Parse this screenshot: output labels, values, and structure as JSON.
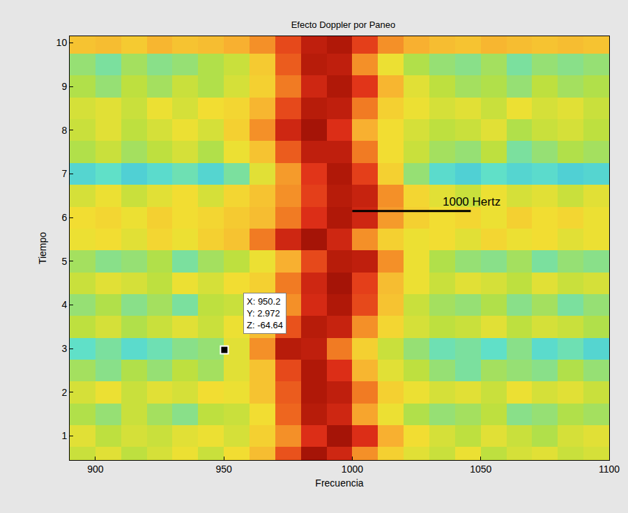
{
  "chart_data": {
    "type": "heatmap",
    "title": "Efecto Doppler por Paneo",
    "x_label": "Frecuencia",
    "y_label": "Tiempo",
    "x": [
      895,
      905,
      915,
      925,
      935,
      945,
      955,
      965,
      975,
      985,
      995,
      1005,
      1015,
      1025,
      1035,
      1045,
      1055,
      1065,
      1075,
      1085,
      1095
    ],
    "y": [
      0.5,
      1.0,
      1.5,
      2.0,
      2.5,
      3.0,
      3.5,
      4.0,
      4.5,
      5.0,
      5.5,
      6.0,
      6.5,
      7.0,
      7.5,
      8.0,
      8.5,
      9.0,
      9.5,
      10.0
    ],
    "cells": [
      [
        -66,
        -64,
        -67,
        -65,
        -63,
        -66,
        -62,
        -57,
        -46,
        -35,
        -40,
        -52,
        -60,
        -64,
        -66,
        -63,
        -67,
        -65,
        -64,
        -66,
        -65
      ],
      [
        -64,
        -67,
        -65,
        -66,
        -64,
        -63,
        -65,
        -60,
        -52,
        -42,
        -35,
        -42,
        -55,
        -62,
        -65,
        -67,
        -64,
        -66,
        -68,
        -65,
        -64
      ],
      [
        -68,
        -70,
        -66,
        -69,
        -71,
        -67,
        -66,
        -62,
        -48,
        -37,
        -40,
        -54,
        -63,
        -68,
        -70,
        -69,
        -67,
        -71,
        -70,
        -68,
        -69
      ],
      [
        -65,
        -63,
        -66,
        -64,
        -65,
        -62,
        -63,
        -58,
        -47,
        -36,
        -38,
        -50,
        -60,
        -63,
        -65,
        -64,
        -66,
        -63,
        -65,
        -64,
        -66
      ],
      [
        -69,
        -71,
        -68,
        -70,
        -67,
        -69,
        -64,
        -58,
        -45,
        -36,
        -42,
        -56,
        -64,
        -67,
        -70,
        -72,
        -69,
        -70,
        -71,
        -68,
        -70
      ],
      [
        -74,
        -72,
        -75,
        -73,
        -71,
        -70,
        -64,
        -52,
        -37,
        -38,
        -50,
        -60,
        -66,
        -70,
        -73,
        -72,
        -74,
        -71,
        -75,
        -73,
        -76
      ],
      [
        -67,
        -65,
        -68,
        -66,
        -64,
        -66,
        -63,
        -57,
        -46,
        -37,
        -39,
        -52,
        -61,
        -65,
        -67,
        -66,
        -64,
        -67,
        -65,
        -66,
        -68
      ],
      [
        -70,
        -68,
        -71,
        -69,
        -72,
        -67,
        -66,
        -62,
        -52,
        -41,
        -36,
        -45,
        -58,
        -66,
        -69,
        -70,
        -68,
        -71,
        -69,
        -72,
        -70
      ],
      [
        -66,
        -64,
        -65,
        -67,
        -63,
        -65,
        -62,
        -60,
        -50,
        -40,
        -35,
        -44,
        -57,
        -63,
        -66,
        -64,
        -65,
        -67,
        -64,
        -66,
        -65
      ],
      [
        -69,
        -71,
        -70,
        -68,
        -72,
        -69,
        -67,
        -63,
        -55,
        -45,
        -37,
        -38,
        -52,
        -63,
        -68,
        -70,
        -71,
        -69,
        -72,
        -70,
        -71
      ],
      [
        -63,
        -62,
        -64,
        -61,
        -63,
        -60,
        -58,
        -50,
        -40,
        -35,
        -40,
        -52,
        -60,
        -63,
        -62,
        -64,
        -61,
        -63,
        -62,
        -64,
        -63
      ],
      [
        -62,
        -61,
        -63,
        -60,
        -62,
        -61,
        -59,
        -57,
        -50,
        -42,
        -36,
        -40,
        -53,
        -60,
        -62,
        -61,
        -63,
        -60,
        -62,
        -61,
        -63
      ],
      [
        -65,
        -63,
        -66,
        -64,
        -62,
        -65,
        -61,
        -58,
        -52,
        -44,
        -37,
        -39,
        -52,
        -61,
        -64,
        -66,
        -63,
        -65,
        -64,
        -66,
        -64
      ],
      [
        -76,
        -74,
        -77,
        -75,
        -73,
        -76,
        -72,
        -64,
        -53,
        -43,
        -36,
        -44,
        -60,
        -70,
        -75,
        -77,
        -74,
        -76,
        -75,
        -77,
        -76
      ],
      [
        -68,
        -66,
        -69,
        -67,
        -65,
        -68,
        -63,
        -58,
        -47,
        -38,
        -38,
        -50,
        -62,
        -66,
        -69,
        -70,
        -67,
        -72,
        -70,
        -68,
        -69
      ],
      [
        -66,
        -64,
        -67,
        -65,
        -63,
        -65,
        -60,
        -52,
        -40,
        -35,
        -42,
        -55,
        -62,
        -65,
        -67,
        -66,
        -64,
        -68,
        -66,
        -65,
        -67
      ],
      [
        -65,
        -64,
        -66,
        -63,
        -65,
        -62,
        -61,
        -56,
        -45,
        -37,
        -38,
        -50,
        -60,
        -63,
        -65,
        -64,
        -66,
        -63,
        -65,
        -64,
        -66
      ],
      [
        -68,
        -70,
        -67,
        -69,
        -66,
        -68,
        -65,
        -60,
        -50,
        -40,
        -36,
        -43,
        -56,
        -64,
        -67,
        -69,
        -68,
        -70,
        -67,
        -69,
        -68
      ],
      [
        -70,
        -72,
        -69,
        -71,
        -70,
        -68,
        -66,
        -59,
        -47,
        -37,
        -38,
        -52,
        -63,
        -68,
        -70,
        -71,
        -69,
        -72,
        -70,
        -71,
        -70
      ],
      [
        -58,
        -57,
        -59,
        -56,
        -58,
        -57,
        -55,
        -52,
        -45,
        -38,
        -36,
        -44,
        -52,
        -55,
        -57,
        -58,
        -56,
        -57,
        -58,
        -57,
        -58
      ]
    ],
    "zlim": [
      -80,
      -30
    ],
    "xlim": [
      890,
      1100
    ],
    "xticks": [
      900,
      950,
      1000,
      1050,
      1100
    ],
    "ylim": [
      0.45,
      10.15
    ],
    "yticks": [
      1,
      2,
      3,
      4,
      5,
      6,
      7,
      8,
      9,
      10
    ],
    "annotations": [
      {
        "text": "1000 Hertz",
        "x": 1000,
        "y": 6.15
      }
    ],
    "datatip": {
      "x": 950.2,
      "y": 2.972,
      "z": -64.64,
      "labels": [
        "X:",
        "Y:",
        "Z:"
      ]
    }
  }
}
